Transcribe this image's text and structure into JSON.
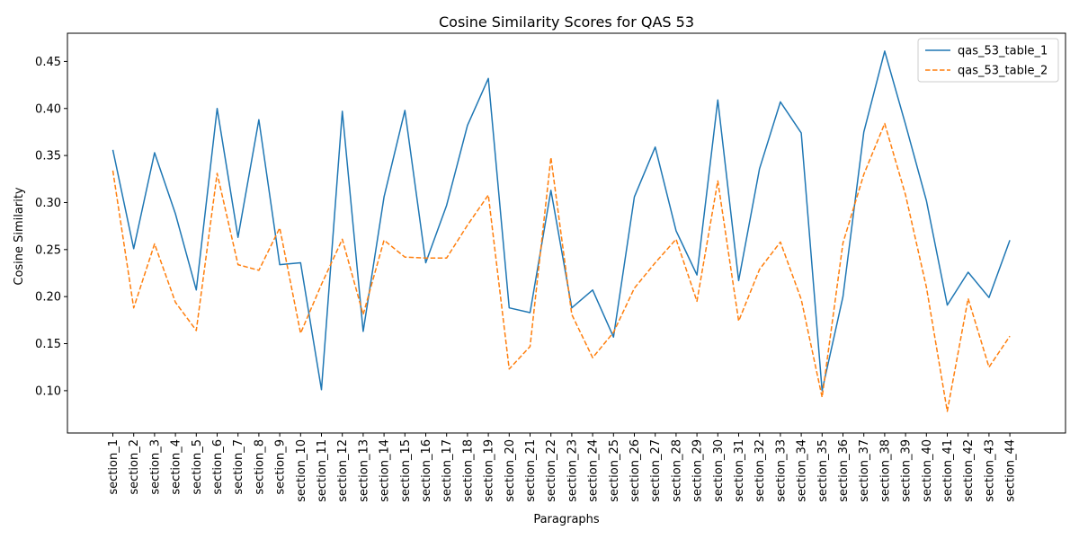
{
  "chart_data": {
    "type": "line",
    "title": "Cosine Similarity Scores for QAS 53",
    "xlabel": "Paragraphs",
    "ylabel": "Cosine Similarity",
    "ylim": [
      0.055,
      0.48
    ],
    "yticks": [
      0.1,
      0.15,
      0.2,
      0.25,
      0.3,
      0.35,
      0.4,
      0.45
    ],
    "ytick_labels": [
      "0.10",
      "0.15",
      "0.20",
      "0.25",
      "0.30",
      "0.35",
      "0.40",
      "0.45"
    ],
    "grid": false,
    "legend_position": "upper-right",
    "categories": [
      "section_1",
      "section_2",
      "section_3",
      "section_4",
      "section_5",
      "section_6",
      "section_7",
      "section_8",
      "section_9",
      "section_10",
      "section_11",
      "section_12",
      "section_13",
      "section_14",
      "section_15",
      "section_16",
      "section_17",
      "section_18",
      "section_19",
      "section_20",
      "section_21",
      "section_22",
      "section_23",
      "section_24",
      "section_25",
      "section_26",
      "section_27",
      "section_28",
      "section_29",
      "section_30",
      "section_31",
      "section_32",
      "section_33",
      "section_34",
      "section_35",
      "section_36",
      "section_37",
      "section_38",
      "section_39",
      "section_40",
      "section_41",
      "section_42",
      "section_43",
      "section_44"
    ],
    "series": [
      {
        "name": "qas_53_table_1",
        "color": "#1f77b4",
        "style": "solid",
        "values": [
          0.356,
          0.251,
          0.353,
          0.288,
          0.207,
          0.4,
          0.263,
          0.388,
          0.234,
          0.236,
          0.101,
          0.397,
          0.163,
          0.306,
          0.398,
          0.236,
          0.297,
          0.382,
          0.432,
          0.188,
          0.183,
          0.313,
          0.188,
          0.207,
          0.157,
          0.306,
          0.359,
          0.27,
          0.223,
          0.409,
          0.217,
          0.336,
          0.407,
          0.374,
          0.1,
          0.2,
          0.375,
          0.461,
          0.383,
          0.302,
          0.191,
          0.226,
          0.199,
          0.26
        ]
      },
      {
        "name": "qas_53_table_2",
        "color": "#ff7f0e",
        "style": "dashed",
        "values": [
          0.334,
          0.188,
          0.256,
          0.194,
          0.164,
          0.331,
          0.234,
          0.228,
          0.273,
          0.161,
          0.213,
          0.261,
          0.181,
          0.26,
          0.242,
          0.241,
          0.241,
          0.276,
          0.308,
          0.123,
          0.147,
          0.348,
          0.181,
          0.135,
          0.162,
          0.209,
          0.236,
          0.261,
          0.195,
          0.323,
          0.174,
          0.229,
          0.258,
          0.197,
          0.093,
          0.257,
          0.33,
          0.384,
          0.308,
          0.21,
          0.078,
          0.198,
          0.125,
          0.158
        ]
      }
    ]
  }
}
